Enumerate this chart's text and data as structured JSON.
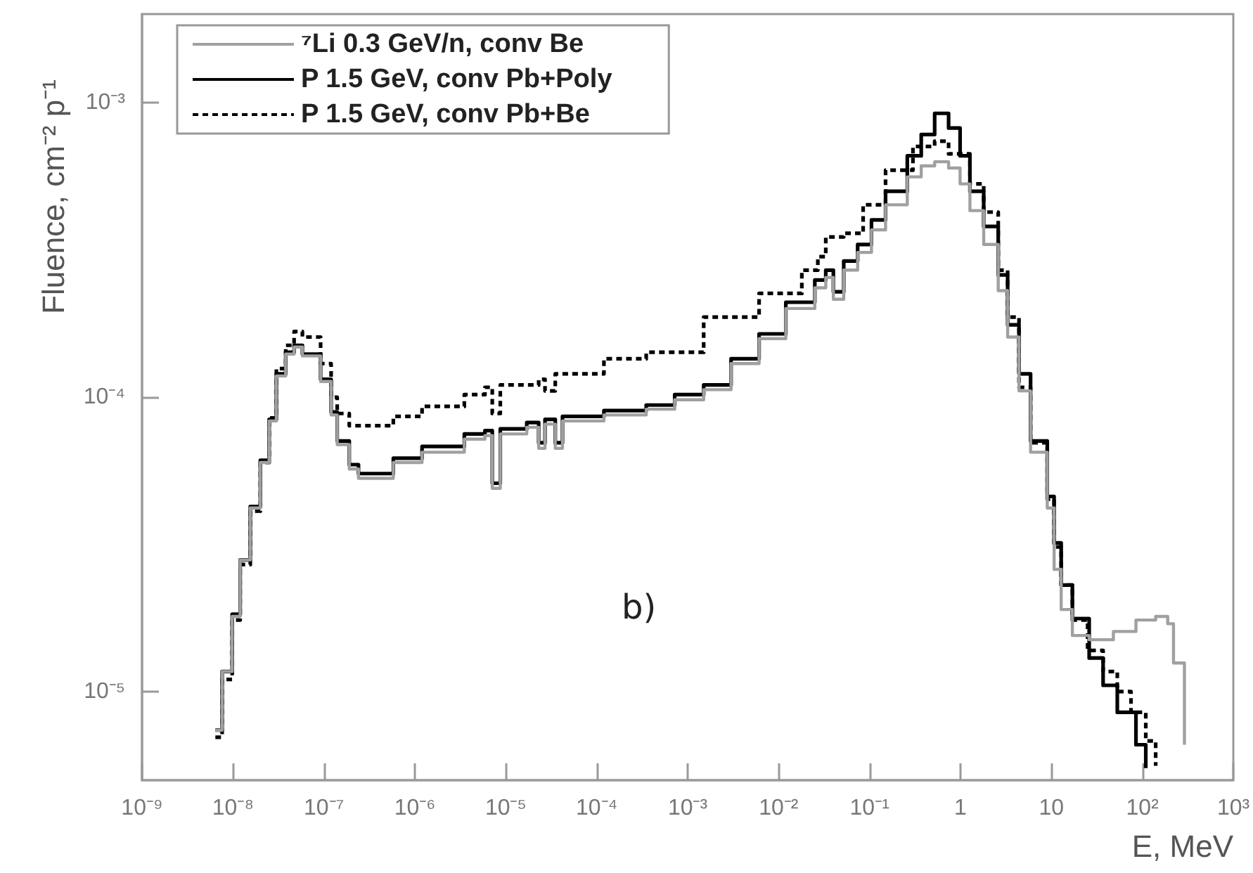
{
  "chart_data": {
    "type": "step",
    "xlabel": "E, MeV",
    "ylabel": "Fluence, cm⁻² p⁻¹",
    "log": "xy",
    "grid": false,
    "legend": "top left",
    "marker": "none",
    "xlim": [
      1e-09,
      1000
    ],
    "ylim": [
      5e-06,
      0.002
    ],
    "xticks": [
      {
        "value": 1e-09,
        "label": "10⁻⁹"
      },
      {
        "value": 1e-08,
        "label": "10⁻⁸"
      },
      {
        "value": 1e-07,
        "label": "10⁻⁷"
      },
      {
        "value": 1e-06,
        "label": "10⁻⁶"
      },
      {
        "value": 1e-05,
        "label": "10⁻⁵"
      },
      {
        "value": 0.0001,
        "label": "10⁻⁴"
      },
      {
        "value": 0.001,
        "label": "10⁻³"
      },
      {
        "value": 0.01,
        "label": "10⁻²"
      },
      {
        "value": 0.1,
        "label": "10⁻¹"
      },
      1,
      10,
      {
        "value": 100,
        "label": "10²"
      },
      {
        "value": 1000,
        "label": "10³"
      }
    ],
    "yticks": [
      {
        "value": 1e-05,
        "label": "10⁻⁵"
      },
      {
        "value": 0.0001,
        "label": "10⁻⁴"
      },
      {
        "value": 0.001,
        "label": "10⁻³"
      }
    ],
    "annotations": [
      "b)"
    ],
    "series": [
      {
        "name": "⁷Li 0.3 GeV/n, conv Be",
        "color": "#a0a0a0",
        "line_style": "solid",
        "x": [
          6.4e-09,
          7.6e-09,
          9.8e-09,
          1.2e-08,
          1.55e-08,
          2e-08,
          2.5e-08,
          3e-08,
          3.8e-08,
          4.7e-08,
          5.8e-08,
          9.2e-08,
          1.2e-07,
          1.4e-07,
          1.9e-07,
          2.4e-07,
          5.8e-07,
          1.2e-06,
          3.5e-06,
          5.9e-06,
          7.1e-06,
          8.7e-06,
          1.7e-05,
          2.3e-05,
          2.7e-05,
          3.5e-05,
          4.2e-05,
          0.00012,
          0.00035,
          0.00072,
          0.0015,
          0.003,
          0.0061,
          0.012,
          0.025,
          0.033,
          0.04,
          0.052,
          0.074,
          0.105,
          0.15,
          0.26,
          0.37,
          0.52,
          0.74,
          0.99,
          1.27,
          1.8,
          2.6,
          3.3,
          4.4,
          5.9,
          9,
          10.7,
          12.8,
          17,
          26,
          48,
          85,
          140,
          190,
          220,
          290
        ],
        "values": [
          7.4e-06,
          1.17e-05,
          1.8e-05,
          2.8e-05,
          4.2e-05,
          6e-05,
          8.3e-05,
          0.000118,
          0.00014,
          0.000148,
          0.000138,
          0.000113,
          8.7e-05,
          6.9e-05,
          5.7e-05,
          5.3e-05,
          6e-05,
          6.5e-05,
          7.2e-05,
          7.4e-05,
          4.9e-05,
          7.5e-05,
          7.9e-05,
          6.7e-05,
          8.1e-05,
          6.7e-05,
          8.3e-05,
          8.7e-05,
          9.1e-05,
          9.8e-05,
          0.000106,
          0.00013,
          0.000158,
          0.0002,
          0.000235,
          0.000255,
          0.000215,
          0.00027,
          0.00031,
          0.00037,
          0.00045,
          0.00056,
          0.00061,
          0.00063,
          0.0006,
          0.00053,
          0.00043,
          0.00033,
          0.00023,
          0.00016,
          0.000105,
          6.5e-05,
          4.2e-05,
          2.6e-05,
          1.9e-05,
          1.55e-05,
          1.5e-05,
          1.6e-05,
          1.75e-05,
          1.8e-05,
          1.7e-05,
          1.25e-05,
          6.6e-06
        ]
      },
      {
        "name": "P 1.5 GeV, conv Pb+Poly",
        "color": "#000000",
        "line_style": "solid",
        "x": [
          6.4e-09,
          7.6e-09,
          9.8e-09,
          1.2e-08,
          1.55e-08,
          2e-08,
          2.5e-08,
          3e-08,
          3.8e-08,
          4.7e-08,
          5.8e-08,
          9.2e-08,
          1.2e-07,
          1.4e-07,
          1.9e-07,
          2.4e-07,
          5.8e-07,
          1.2e-06,
          3.5e-06,
          5.9e-06,
          7.1e-06,
          8.7e-06,
          1.7e-05,
          2.3e-05,
          2.7e-05,
          3.5e-05,
          4.2e-05,
          0.00012,
          0.00035,
          0.00072,
          0.0015,
          0.003,
          0.0061,
          0.012,
          0.025,
          0.033,
          0.04,
          0.052,
          0.074,
          0.105,
          0.15,
          0.26,
          0.37,
          0.52,
          0.74,
          0.99,
          1.27,
          1.8,
          2.6,
          3.3,
          4.4,
          5.9,
          9,
          10.7,
          12.8,
          17,
          26,
          37,
          53,
          85,
          109
        ],
        "values": [
          7.4e-06,
          1.17e-05,
          1.83e-05,
          2.8e-05,
          4.25e-05,
          6.1e-05,
          8.4e-05,
          0.00012,
          0.000142,
          0.00015,
          0.00014,
          0.000115,
          8.9e-05,
          7.1e-05,
          5.9e-05,
          5.5e-05,
          6.2e-05,
          6.8e-05,
          7.5e-05,
          7.7e-05,
          5.1e-05,
          7.8e-05,
          8.2e-05,
          7e-05,
          8.4e-05,
          7e-05,
          8.6e-05,
          9e-05,
          9.4e-05,
          0.000102,
          0.00011,
          0.000135,
          0.000164,
          0.00021,
          0.00025,
          0.00027,
          0.000228,
          0.00029,
          0.00033,
          0.0004,
          0.0005,
          0.00066,
          0.00078,
          0.00092,
          0.00082,
          0.00066,
          0.0005,
          0.00038,
          0.00026,
          0.000176,
          0.00012,
          7.1e-05,
          4.6e-05,
          3.2e-05,
          2.3e-05,
          1.77e-05,
          1.3e-05,
          1.05e-05,
          8.5e-06,
          6.6e-06,
          5.5e-06
        ]
      },
      {
        "name": "P 1.5 GeV, conv Pb+Be",
        "color": "#000000",
        "line_style": "dashed",
        "x": [
          6.4e-09,
          7.6e-09,
          9.8e-09,
          1.2e-08,
          1.55e-08,
          2e-08,
          2.5e-08,
          3e-08,
          3.8e-08,
          4.7e-08,
          5.8e-08,
          9.2e-08,
          1.2e-07,
          1.4e-07,
          1.9e-07,
          5.8e-07,
          1.2e-06,
          3.5e-06,
          5.9e-06,
          7.1e-06,
          8.7e-06,
          2.3e-05,
          2.7e-05,
          3.5e-05,
          0.00012,
          0.00035,
          0.0015,
          0.0061,
          0.018,
          0.027,
          0.033,
          0.052,
          0.085,
          0.15,
          0.3,
          0.52,
          0.74,
          1.27,
          1.8,
          2.6,
          3.3,
          4.4,
          5.9,
          9,
          10.7,
          12.8,
          17,
          25,
          37,
          53,
          75,
          109,
          140
        ],
        "values": [
          7e-06,
          1.1e-05,
          1.75e-05,
          2.7e-05,
          4.1e-05,
          6e-05,
          8.5e-05,
          0.000125,
          0.00015,
          0.000167,
          0.00016,
          0.00013,
          0.0001,
          8.8e-05,
          8e-05,
          8.6e-05,
          9.3e-05,
          0.000102,
          0.000108,
          8.8e-05,
          0.00011,
          0.000115,
          0.000105,
          0.00012,
          0.000135,
          0.000142,
          0.000187,
          0.000225,
          0.00027,
          0.0003,
          0.00035,
          0.00036,
          0.00045,
          0.00059,
          0.00071,
          0.00074,
          0.00067,
          0.00053,
          0.000425,
          0.00027,
          0.000187,
          0.000108,
          7e-05,
          4.5e-05,
          3.1e-05,
          2.3e-05,
          1.75e-05,
          1.38e-05,
          1.17e-05,
          1e-05,
          8.5e-06,
          6.8e-06,
          5.6e-06
        ]
      }
    ]
  }
}
